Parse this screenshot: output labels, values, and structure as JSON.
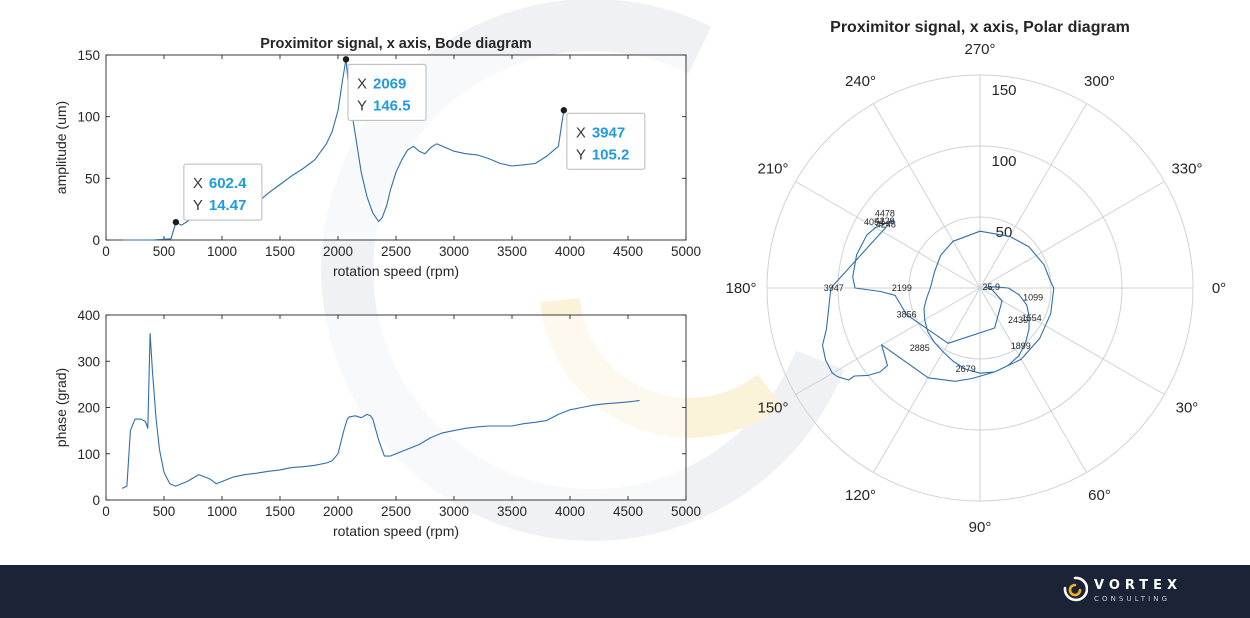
{
  "colors": {
    "line": "#2f6fae",
    "tip_value": "#1f9bde",
    "footer_bg": "#1b2336",
    "watermark": "#eef0f3",
    "watermark_accent": "#fbf1d6"
  },
  "brand": {
    "name": "VORTEX",
    "sub": "CONSULTING"
  },
  "chart_data": [
    {
      "type": "line",
      "title": "Proximitor signal, x axis, Bode diagram",
      "xlabel": "rotation speed (rpm)",
      "ylabel": "amplitude (um)",
      "xlim": [
        0,
        5000
      ],
      "ylim": [
        0,
        150
      ],
      "xticks": [
        "0",
        "500",
        "1000",
        "1500",
        "2000",
        "2500",
        "3000",
        "3500",
        "4000",
        "4500",
        "5000"
      ],
      "yticks": [
        "0",
        "50",
        "100",
        "150"
      ],
      "grid": false,
      "series": [
        {
          "x": [
            140,
            400,
            560,
            602.4,
            650,
            700,
            800,
            900,
            1000,
            1100,
            1200,
            1300,
            1400,
            1500,
            1600,
            1700,
            1800,
            1900,
            1950,
            2000,
            2040,
            2069,
            2100,
            2150,
            2200,
            2250,
            2300,
            2350,
            2380,
            2420,
            2450,
            2500,
            2550,
            2600,
            2650,
            2700,
            2750,
            2800,
            2850,
            2900,
            3000,
            3100,
            3200,
            3300,
            3400,
            3500,
            3600,
            3700,
            3800,
            3850,
            3900,
            3930,
            3947
          ],
          "y": [
            0,
            0,
            1,
            14.47,
            12,
            15,
            22,
            24,
            30,
            33,
            32,
            30,
            38,
            45,
            52,
            58,
            65,
            78,
            88,
            105,
            130,
            146.5,
            115,
            85,
            55,
            35,
            22,
            15,
            18,
            28,
            40,
            55,
            65,
            73,
            76,
            72,
            70,
            75,
            78,
            76,
            72,
            70,
            69,
            66,
            62,
            60,
            61,
            62,
            68,
            72,
            76,
            95,
            105.2
          ]
        }
      ],
      "annotations": [
        {
          "x_label": "X",
          "x": "602.4",
          "y_label": "Y",
          "y": "14.47"
        },
        {
          "x_label": "X",
          "x": "2069",
          "y_label": "Y",
          "y": "146.5"
        },
        {
          "x_label": "X",
          "x": "3947",
          "y_label": "Y",
          "y": "105.2"
        }
      ]
    },
    {
      "type": "line",
      "title": "",
      "xlabel": "rotation speed (rpm)",
      "ylabel": "phase (grad)",
      "xlim": [
        0,
        5000
      ],
      "ylim": [
        0,
        400
      ],
      "xticks": [
        "0",
        "500",
        "1000",
        "1500",
        "2000",
        "2500",
        "3000",
        "3500",
        "4000",
        "4500",
        "5000"
      ],
      "yticks": [
        "0",
        "100",
        "200",
        "300",
        "400"
      ],
      "grid": false,
      "series": [
        {
          "x": [
            140,
            180,
            210,
            250,
            300,
            340,
            360,
            380,
            400,
            430,
            460,
            500,
            550,
            600,
            700,
            800,
            850,
            900,
            950,
            1000,
            1100,
            1200,
            1300,
            1400,
            1500,
            1600,
            1700,
            1800,
            1900,
            1950,
            2000,
            2050,
            2080,
            2100,
            2150,
            2200,
            2250,
            2280,
            2300,
            2350,
            2400,
            2450,
            2500,
            2600,
            2700,
            2800,
            2900,
            3000,
            3100,
            3200,
            3300,
            3400,
            3500,
            3600,
            3700,
            3800,
            3900,
            4000,
            4100,
            4200,
            4300,
            4400,
            4500,
            4600
          ],
          "y": [
            25,
            30,
            150,
            175,
            175,
            170,
            155,
            360,
            280,
            180,
            110,
            60,
            35,
            30,
            40,
            55,
            50,
            45,
            35,
            40,
            50,
            55,
            58,
            62,
            65,
            70,
            72,
            75,
            80,
            85,
            100,
            150,
            175,
            180,
            182,
            178,
            185,
            182,
            175,
            130,
            95,
            95,
            100,
            110,
            120,
            135,
            145,
            150,
            155,
            158,
            160,
            160,
            160,
            165,
            168,
            172,
            185,
            195,
            200,
            205,
            208,
            210,
            212,
            215
          ]
        }
      ]
    },
    {
      "type": "polar",
      "title": "Proximitor signal, x axis, Polar diagram",
      "angle_ticks": [
        "0°",
        "30°",
        "60°",
        "90°",
        "120°",
        "150°",
        "180°",
        "210°",
        "240°",
        "270°",
        "300°",
        "330°"
      ],
      "radius_ticks": [
        "50",
        "100",
        "150"
      ],
      "rlim": [
        0,
        150
      ],
      "series": [
        {
          "theta_deg": [
            -8,
            5,
            30,
            70,
            120,
            160,
            175,
            178,
            180,
            185,
            195,
            205,
            210,
            215,
            218,
            180,
            165,
            160,
            155,
            150,
            148,
            145,
            145,
            142,
            140,
            140,
            150,
            120,
            105,
            95,
            80,
            60,
            40,
            20,
            0,
            355,
            340,
            320,
            300,
            270,
            240,
            220,
            200,
            180,
            170,
            160,
            150,
            140,
            130,
            120,
            110,
            100,
            90,
            80,
            70,
            60,
            50,
            40,
            30,
            20,
            10,
            0,
            -5,
            -8
          ],
          "r": [
            3,
            8,
            18,
            30,
            45,
            55,
            60,
            70,
            88,
            90,
            90,
            88,
            85,
            80,
            78,
            105,
            112,
            118,
            120,
            120,
            118,
            113,
            108,
            100,
            92,
            85,
            80,
            73,
            68,
            64,
            60,
            58,
            55,
            53,
            52,
            50,
            48,
            45,
            42,
            40,
            38,
            36,
            34,
            35,
            38,
            42,
            45,
            48,
            50,
            52,
            55,
            58,
            60,
            60,
            58,
            55,
            50,
            45,
            40,
            35,
            28,
            20,
            10,
            3
          ],
          "point_labels": [
            {
              "label": "25.9",
              "theta_deg": -5,
              "r": 8
            },
            {
              "label": "1099",
              "theta_deg": 10,
              "r": 38
            },
            {
              "label": "1554",
              "theta_deg": 30,
              "r": 42
            },
            {
              "label": "1899",
              "theta_deg": 55,
              "r": 50
            },
            {
              "label": "2199",
              "theta_deg": 180,
              "r": 55
            },
            {
              "label": "2439",
              "theta_deg": 40,
              "r": 35
            },
            {
              "label": "2679",
              "theta_deg": 100,
              "r": 58
            },
            {
              "label": "2885",
              "theta_deg": 135,
              "r": 60
            },
            {
              "label": "3947",
              "theta_deg": 180,
              "r": 103
            },
            {
              "label": "4054",
              "theta_deg": 212,
              "r": 88
            },
            {
              "label": "4229",
              "theta_deg": 215,
              "r": 82
            },
            {
              "label": "4248",
              "theta_deg": 214,
              "r": 80
            },
            {
              "label": "4478",
              "theta_deg": 218,
              "r": 85
            },
            {
              "label": "3856",
              "theta_deg": 160,
              "r": 55
            }
          ]
        }
      ]
    }
  ]
}
